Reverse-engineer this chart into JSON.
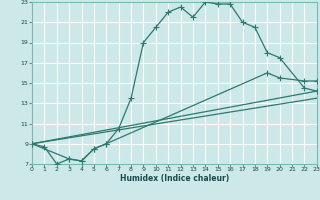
{
  "bg_color": "#cde8e8",
  "grid_color": "#b0d4d4",
  "line_color": "#2d7a6e",
  "xlabel": "Humidex (Indice chaleur)",
  "xlim": [
    0,
    23
  ],
  "ylim": [
    7,
    23
  ],
  "xticks": [
    0,
    1,
    2,
    3,
    4,
    5,
    6,
    7,
    8,
    9,
    10,
    11,
    12,
    13,
    14,
    15,
    16,
    17,
    18,
    19,
    20,
    21,
    22,
    23
  ],
  "yticks": [
    7,
    9,
    11,
    13,
    15,
    17,
    19,
    21,
    23
  ],
  "main_x": [
    0,
    1,
    2,
    3,
    4,
    5,
    6,
    7,
    8,
    9,
    10,
    11,
    12,
    13,
    14,
    15,
    16,
    17,
    18,
    19,
    20,
    22,
    23
  ],
  "main_y": [
    9,
    8.7,
    7.0,
    7.5,
    7.3,
    8.5,
    9.0,
    10.5,
    13.5,
    19,
    20.5,
    22.0,
    22.5,
    21.5,
    23,
    22.8,
    22.8,
    21,
    20.5,
    18,
    17.5,
    14.5,
    14.2
  ],
  "curve2_x": [
    0,
    3,
    4,
    5,
    6,
    19,
    20,
    22,
    23
  ],
  "curve2_y": [
    9,
    7.5,
    7.3,
    8.5,
    9.0,
    16,
    15.5,
    15.2,
    15.2
  ],
  "line1_x": [
    0,
    23
  ],
  "line1_y": [
    9,
    14.2
  ],
  "line2_x": [
    0,
    23
  ],
  "line2_y": [
    9,
    13.5
  ]
}
